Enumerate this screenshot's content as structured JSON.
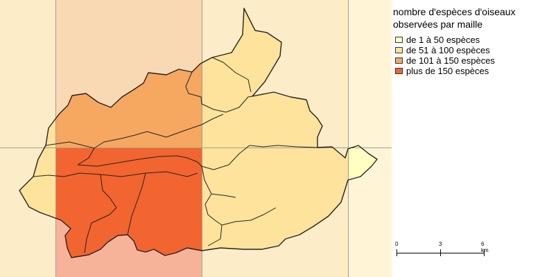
{
  "legend": {
    "title_line1": "nombre d'espèces d'oiseaux",
    "title_line2": "observées par maille",
    "classes": [
      {
        "label": "de 1 à 50 espèces",
        "color": "#ffffc0"
      },
      {
        "label": "de 51 à 100 espèces",
        "color": "#fde39b"
      },
      {
        "label": "de 101 à 150 espèces",
        "color": "#f6a760"
      },
      {
        "label": "plus de 150 espèces",
        "color": "#f26430"
      }
    ]
  },
  "scale": {
    "labels": [
      "0",
      "3",
      "6 km"
    ]
  },
  "grid": {
    "cell_colors": {
      "outside_light": "#fdecc8",
      "outside_medium": "#f9d8b4",
      "outside_strong": "#f7b39a",
      "outside_pale": "#fff4d6"
    },
    "line_color": "#a69f8c"
  },
  "commune_outline_color": "#222222"
}
